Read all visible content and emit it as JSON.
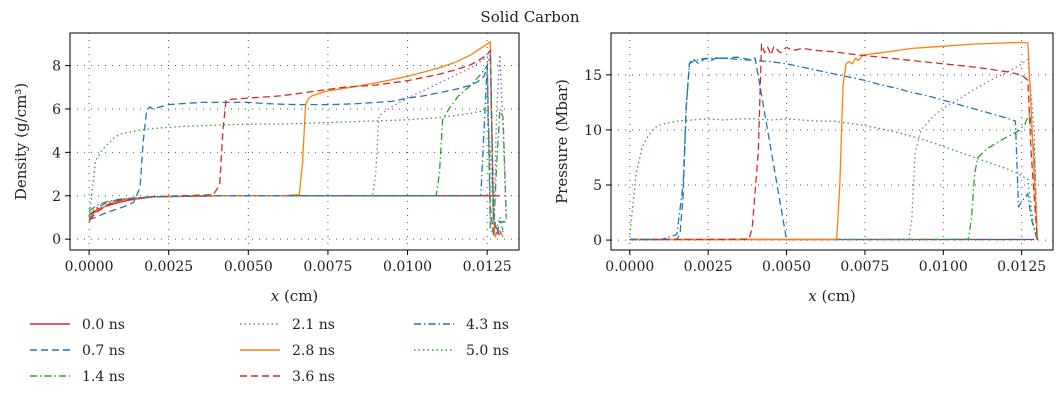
{
  "figure": {
    "title": "Solid Carbon"
  },
  "legend": {
    "placement": "bottom-left",
    "columns": 3,
    "entries": [
      "0.0 ns",
      "0.7 ns",
      "1.4 ns",
      "2.1 ns",
      "2.8 ns",
      "3.6 ns",
      "4.3 ns",
      "5.0 ns"
    ]
  },
  "series_styles": [
    {
      "name": "0.0 ns",
      "color": "#d62728",
      "dash": "solid"
    },
    {
      "name": "0.7 ns",
      "color": "#1f77b4",
      "dash": "dashed"
    },
    {
      "name": "1.4 ns",
      "color": "#2ca02c",
      "dash": "dashdot"
    },
    {
      "name": "2.1 ns",
      "color": "#9467bd",
      "dash": "dotted"
    },
    {
      "name": "2.8 ns",
      "color": "#ff7f0e",
      "dash": "solid"
    },
    {
      "name": "3.6 ns",
      "color": "#d62728",
      "dash": "dashed"
    },
    {
      "name": "4.3 ns",
      "color": "#1f77b4",
      "dash": "dashdot"
    },
    {
      "name": "5.0 ns",
      "color": "#2ca02c",
      "dash": "dotted"
    }
  ],
  "chart_data": [
    {
      "type": "line",
      "xlabel": "x (cm)",
      "ylabel": "Density (g/cm³)",
      "xlim": [
        -0.0006,
        0.0135
      ],
      "ylim": [
        -0.5,
        9.5
      ],
      "xticks": [
        0.0,
        0.0025,
        0.005,
        0.0075,
        0.01,
        0.0125
      ],
      "xtick_labels": [
        "0.0000",
        "0.0025",
        "0.0050",
        "0.0075",
        "0.0100",
        "0.0125"
      ],
      "yticks": [
        0,
        2,
        4,
        6,
        8
      ],
      "ytick_labels": [
        "0",
        "2",
        "4",
        "6",
        "8"
      ],
      "grid": true,
      "series": [
        {
          "name": "0.0 ns",
          "x": [
            0.0,
            0.0001,
            0.0003,
            0.0006,
            0.0009,
            0.0012,
            0.0015,
            0.002,
            0.004,
            0.006,
            0.008,
            0.01,
            0.012,
            0.0127,
            0.0129
          ],
          "y": [
            0.8,
            1.2,
            1.4,
            1.55,
            1.68,
            1.78,
            1.85,
            1.95,
            2.0,
            2.0,
            2.0,
            2.0,
            2.0,
            2.0,
            2.0
          ]
        },
        {
          "name": "0.7 ns",
          "x": [
            0.0,
            0.0002,
            0.0005,
            0.0008,
            0.0011,
            0.0014,
            0.0016,
            0.0017,
            0.0018,
            0.0019,
            0.002,
            0.0025,
            0.003,
            0.0035,
            0.004,
            0.0045,
            0.005,
            0.0055,
            0.006,
            0.0065,
            0.007,
            0.0075,
            0.008,
            0.0085,
            0.009,
            0.0095,
            0.01,
            0.0105,
            0.011,
            0.0115,
            0.012,
            0.0122,
            0.0124,
            0.0125,
            0.0126,
            0.0127,
            0.0128,
            0.0129,
            0.0131
          ],
          "y": [
            0.9,
            1.0,
            1.2,
            1.35,
            1.5,
            1.7,
            2.4,
            4.5,
            5.8,
            6.1,
            6.0,
            6.2,
            6.25,
            6.3,
            6.3,
            6.3,
            6.3,
            6.25,
            6.22,
            6.2,
            6.2,
            6.2,
            6.22,
            6.25,
            6.3,
            6.35,
            6.5,
            6.6,
            6.75,
            6.9,
            7.1,
            7.25,
            7.5,
            8.0,
            1.5,
            0.2,
            0.2,
            0.8,
            0.8
          ]
        },
        {
          "name": "1.4 ns",
          "x": [
            0.0,
            0.0003,
            0.0006,
            0.001,
            0.0014,
            0.002,
            0.004,
            0.006,
            0.008,
            0.0095,
            0.0105,
            0.0109,
            0.011,
            0.0111,
            0.0113,
            0.0116,
            0.012,
            0.0123,
            0.0125,
            0.0126,
            0.0127,
            0.0128,
            0.0129,
            0.013,
            0.0131
          ],
          "y": [
            1.3,
            1.6,
            1.75,
            1.85,
            1.9,
            1.95,
            2.0,
            2.0,
            2.0,
            2.0,
            2.0,
            2.0,
            3.0,
            5.5,
            6.0,
            6.6,
            7.1,
            7.6,
            8.0,
            0.5,
            0.2,
            3.5,
            6.0,
            5.6,
            1.0
          ]
        },
        {
          "name": "2.1 ns",
          "x": [
            0.0,
            0.0003,
            0.0006,
            0.001,
            0.002,
            0.004,
            0.006,
            0.008,
            0.0089,
            0.009,
            0.0091,
            0.0095,
            0.01,
            0.011,
            0.012,
            0.0123,
            0.0125,
            0.0126,
            0.0127,
            0.0128,
            0.0129,
            0.013,
            0.0131
          ],
          "y": [
            1.2,
            1.5,
            1.7,
            1.8,
            1.95,
            2.0,
            2.0,
            2.0,
            2.0,
            3.0,
            5.7,
            6.1,
            6.5,
            7.2,
            7.9,
            8.2,
            8.4,
            1.0,
            0.2,
            6.0,
            8.5,
            5.0,
            0.8
          ]
        },
        {
          "name": "2.8 ns",
          "x": [
            0.0,
            0.0003,
            0.0006,
            0.001,
            0.002,
            0.004,
            0.006,
            0.0066,
            0.0067,
            0.0068,
            0.0069,
            0.007,
            0.0072,
            0.0074,
            0.0078,
            0.0082,
            0.0086,
            0.009,
            0.0095,
            0.01,
            0.0105,
            0.011,
            0.0115,
            0.012,
            0.0123,
            0.0125,
            0.0126,
            0.0127,
            0.01275,
            0.0128,
            0.0129,
            0.013
          ],
          "y": [
            1.0,
            1.35,
            1.6,
            1.8,
            1.95,
            2.0,
            2.0,
            2.05,
            3.5,
            6.2,
            6.5,
            6.6,
            6.7,
            6.8,
            6.9,
            7.0,
            7.1,
            7.2,
            7.35,
            7.5,
            7.7,
            7.9,
            8.15,
            8.5,
            8.8,
            9.0,
            9.1,
            1.0,
            0.1,
            0.3,
            0.4,
            0.1
          ]
        },
        {
          "name": "3.6 ns",
          "x": [
            0.0,
            0.0003,
            0.0006,
            0.001,
            0.002,
            0.0039,
            0.0041,
            0.0042,
            0.0043,
            0.0045,
            0.005,
            0.0055,
            0.006,
            0.0065,
            0.007,
            0.0075,
            0.008,
            0.0085,
            0.009,
            0.0095,
            0.01,
            0.0105,
            0.011,
            0.0115,
            0.012,
            0.0123,
            0.0125,
            0.0126,
            0.0127,
            0.0128,
            0.0129
          ],
          "y": [
            0.9,
            1.3,
            1.6,
            1.8,
            1.95,
            2.05,
            2.5,
            5.0,
            6.4,
            6.45,
            6.5,
            6.55,
            6.6,
            6.7,
            6.8,
            6.9,
            7.0,
            7.05,
            7.1,
            7.2,
            7.3,
            7.45,
            7.6,
            7.8,
            8.05,
            8.3,
            8.5,
            8.7,
            1.0,
            0.3,
            0.2
          ]
        },
        {
          "name": "4.3 ns",
          "x": [
            0.0,
            0.0003,
            0.0006,
            0.001,
            0.002,
            0.004,
            0.006,
            0.008,
            0.01,
            0.012,
            0.0123,
            0.0124,
            0.0125,
            0.0126,
            0.0127,
            0.0128,
            0.0129,
            0.013
          ],
          "y": [
            1.1,
            1.5,
            1.7,
            1.85,
            1.95,
            2.0,
            2.0,
            2.0,
            2.0,
            2.0,
            2.0,
            5.0,
            8.0,
            8.5,
            1.0,
            0.5,
            0.2,
            0.5
          ]
        },
        {
          "name": "5.0 ns",
          "x": [
            0.0,
            0.0002,
            0.0004,
            0.0006,
            0.0008,
            0.001,
            0.0015,
            0.002,
            0.003,
            0.004,
            0.005,
            0.006,
            0.007,
            0.008,
            0.009,
            0.01,
            0.011,
            0.0115,
            0.012,
            0.0123,
            0.0125,
            0.0126,
            0.0127,
            0.0128,
            0.0129,
            0.013
          ],
          "y": [
            1.0,
            3.6,
            4.1,
            4.4,
            4.7,
            4.85,
            5.0,
            5.1,
            5.2,
            5.25,
            5.3,
            5.3,
            5.35,
            5.4,
            5.45,
            5.5,
            5.6,
            5.7,
            5.8,
            5.9,
            6.0,
            4.0,
            1.0,
            0.5,
            1.0,
            0.3
          ]
        }
      ]
    },
    {
      "type": "line",
      "xlabel": "x (cm)",
      "ylabel": "Pressure (Mbar)",
      "xlim": [
        -0.0006,
        0.0135
      ],
      "ylim": [
        -0.9,
        18.8
      ],
      "xticks": [
        0.0,
        0.0025,
        0.005,
        0.0075,
        0.01,
        0.0125
      ],
      "xtick_labels": [
        "0.0000",
        "0.0025",
        "0.0050",
        "0.0075",
        "0.0100",
        "0.0125"
      ],
      "yticks": [
        0,
        5,
        10,
        15
      ],
      "ytick_labels": [
        "0",
        "5",
        "10",
        "15"
      ],
      "grid": true,
      "series": [
        {
          "name": "0.0 ns",
          "x": [
            0.0,
            0.0025,
            0.005,
            0.0075,
            0.01,
            0.0125,
            0.0129
          ],
          "y": [
            0.05,
            0.05,
            0.05,
            0.05,
            0.05,
            0.05,
            0.05
          ]
        },
        {
          "name": "0.7 ns",
          "x": [
            0.0,
            0.001,
            0.0015,
            0.0016,
            0.0017,
            0.0018,
            0.0019,
            0.002,
            0.0022,
            0.0024,
            0.0026,
            0.0028,
            0.003,
            0.0034,
            0.0038,
            0.004,
            0.005,
            0.01,
            0.0128
          ],
          "y": [
            0.05,
            0.05,
            0.1,
            0.5,
            4.0,
            12.0,
            16.0,
            16.5,
            16.0,
            16.5,
            16.3,
            16.6,
            16.5,
            16.6,
            16.4,
            16.5,
            0.05,
            0.05,
            0.05
          ]
        },
        {
          "name": "1.4 ns",
          "x": [
            0.0,
            0.005,
            0.01,
            0.0108,
            0.0109,
            0.011,
            0.0111,
            0.0114,
            0.0118,
            0.012,
            0.0122,
            0.0124,
            0.0126,
            0.01275,
            0.0129,
            0.013
          ],
          "y": [
            0.05,
            0.05,
            0.05,
            0.1,
            2.0,
            6.0,
            7.5,
            8.3,
            9.0,
            9.3,
            9.6,
            9.9,
            10.5,
            11.5,
            8.0,
            0.0
          ]
        },
        {
          "name": "2.1 ns",
          "x": [
            0.0,
            0.005,
            0.0089,
            0.009,
            0.0091,
            0.0093,
            0.0096,
            0.01,
            0.0105,
            0.011,
            0.0115,
            0.012,
            0.0124,
            0.0127,
            0.0129,
            0.013
          ],
          "y": [
            0.05,
            0.05,
            0.05,
            2.0,
            8.0,
            10.0,
            11.0,
            12.0,
            12.8,
            13.7,
            14.5,
            15.2,
            15.8,
            16.4,
            10.0,
            0.0
          ]
        },
        {
          "name": "2.8 ns",
          "x": [
            0.0,
            0.003,
            0.0066,
            0.0067,
            0.0068,
            0.0069,
            0.007,
            0.0071,
            0.0072,
            0.0073,
            0.0074,
            0.0075,
            0.0077,
            0.008,
            0.0085,
            0.009,
            0.0095,
            0.01,
            0.0105,
            0.011,
            0.0115,
            0.012,
            0.0125,
            0.0127,
            0.0128,
            0.013
          ],
          "y": [
            0.05,
            0.05,
            0.05,
            5.0,
            14.0,
            16.0,
            16.2,
            16.0,
            16.5,
            16.3,
            16.7,
            16.8,
            16.9,
            17.0,
            17.2,
            17.4,
            17.5,
            17.6,
            17.7,
            17.8,
            17.85,
            17.9,
            17.95,
            17.9,
            12.0,
            0.0
          ]
        },
        {
          "name": "3.6 ns",
          "x": [
            0.0,
            0.003,
            0.0038,
            0.0039,
            0.0041,
            0.0042,
            0.0043,
            0.0044,
            0.0045,
            0.0046,
            0.0048,
            0.005,
            0.0052,
            0.0055,
            0.006,
            0.0065,
            0.007,
            0.008,
            0.009,
            0.01,
            0.011,
            0.012,
            0.0125,
            0.0127,
            0.0128,
            0.013
          ],
          "y": [
            0.05,
            0.05,
            0.1,
            1.0,
            8.0,
            17.8,
            17.0,
            17.5,
            16.8,
            17.6,
            17.0,
            17.5,
            17.2,
            17.4,
            17.2,
            17.1,
            16.9,
            16.6,
            16.3,
            16.0,
            15.7,
            15.3,
            15.0,
            14.5,
            8.0,
            0.0
          ]
        },
        {
          "name": "4.3 ns",
          "x": [
            0.0,
            0.001,
            0.0015,
            0.0017,
            0.0018,
            0.0019,
            0.002,
            0.0022,
            0.0025,
            0.003,
            0.0035,
            0.004,
            0.0045,
            0.005,
            0.0055,
            0.006,
            0.0065,
            0.007,
            0.0075,
            0.008,
            0.0085,
            0.009,
            0.0095,
            0.01,
            0.0105,
            0.011,
            0.0115,
            0.012,
            0.0123,
            0.0124,
            0.0125,
            0.0127,
            0.0128,
            0.0129,
            0.013
          ],
          "y": [
            0.05,
            0.05,
            0.5,
            5.0,
            12.0,
            16.0,
            16.2,
            16.4,
            16.5,
            16.5,
            16.4,
            16.3,
            16.2,
            16.0,
            15.7,
            15.4,
            15.1,
            14.8,
            14.5,
            14.1,
            13.8,
            13.4,
            13.1,
            12.7,
            12.3,
            11.9,
            11.5,
            11.1,
            10.8,
            3.0,
            3.5,
            4.2,
            2.0,
            1.0,
            0.0
          ]
        },
        {
          "name": "5.0 ns",
          "x": [
            0.0,
            0.0002,
            0.0004,
            0.0006,
            0.0008,
            0.001,
            0.0015,
            0.002,
            0.0025,
            0.003,
            0.0035,
            0.004,
            0.0045,
            0.005,
            0.0055,
            0.006,
            0.0065,
            0.007,
            0.0075,
            0.008,
            0.0085,
            0.009,
            0.0095,
            0.01,
            0.0105,
            0.011,
            0.0115,
            0.012,
            0.0124,
            0.0127,
            0.0128,
            0.0129,
            0.013
          ],
          "y": [
            0.5,
            6.0,
            8.5,
            9.5,
            10.2,
            10.5,
            10.8,
            10.9,
            11.0,
            10.9,
            11.0,
            11.0,
            10.9,
            11.0,
            10.9,
            10.8,
            10.8,
            10.6,
            10.4,
            10.1,
            9.8,
            9.4,
            9.0,
            8.5,
            8.0,
            7.5,
            7.0,
            6.5,
            6.0,
            5.5,
            3.0,
            1.0,
            0.0
          ]
        }
      ]
    }
  ]
}
